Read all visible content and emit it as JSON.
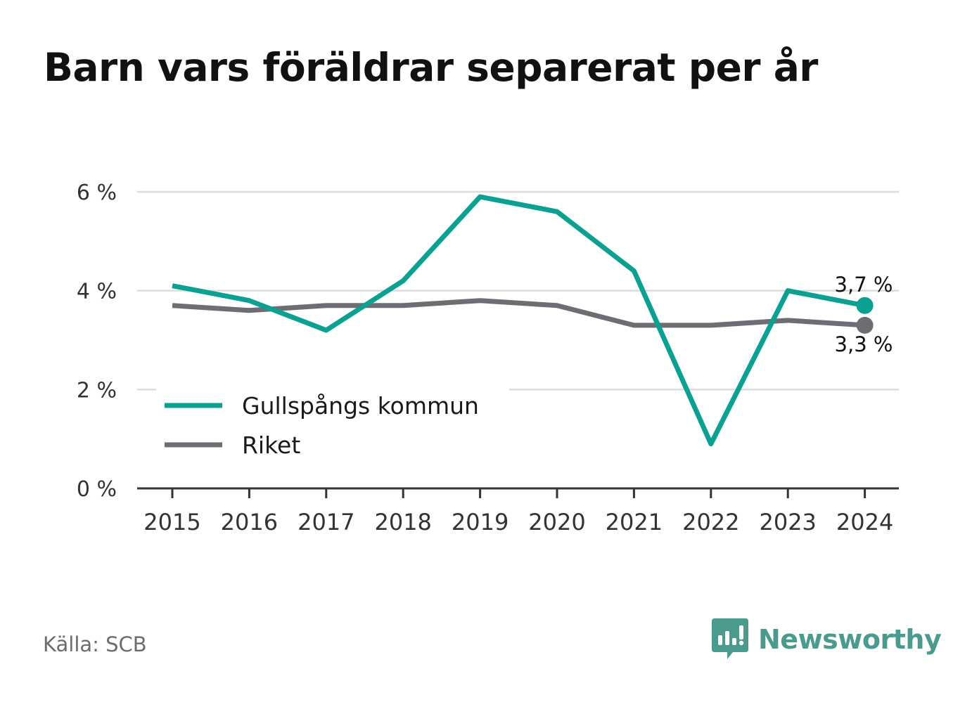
{
  "title": "Barn vars föräldrar separerat per år",
  "source": "Källa: SCB",
  "brand": {
    "name": "Newsworthy",
    "icon": "newsworthy-logo-icon",
    "color": "#4a9a8e"
  },
  "chart_data": {
    "type": "line",
    "title": "Barn vars föräldrar separerat per år",
    "categories": [
      "2015",
      "2016",
      "2017",
      "2018",
      "2019",
      "2020",
      "2021",
      "2022",
      "2023",
      "2024"
    ],
    "series": [
      {
        "name": "Gullspångs kommun",
        "color": "#0aa092",
        "values": [
          4.1,
          3.8,
          3.2,
          4.2,
          5.9,
          5.6,
          4.4,
          0.9,
          4.0,
          3.7
        ],
        "end_label": "3,7 %"
      },
      {
        "name": "Riket",
        "color": "#6e6d73",
        "values": [
          3.7,
          3.6,
          3.7,
          3.7,
          3.8,
          3.7,
          3.3,
          3.3,
          3.4,
          3.3
        ],
        "end_label": "3,3 %"
      }
    ],
    "yticks": [
      {
        "value": 0,
        "label": "0 %"
      },
      {
        "value": 2,
        "label": "2 %"
      },
      {
        "value": 4,
        "label": "4 %"
      },
      {
        "value": 6,
        "label": "6 %"
      }
    ],
    "ylim": [
      0,
      6
    ],
    "grid": true,
    "legend_position": "bottom-left"
  }
}
